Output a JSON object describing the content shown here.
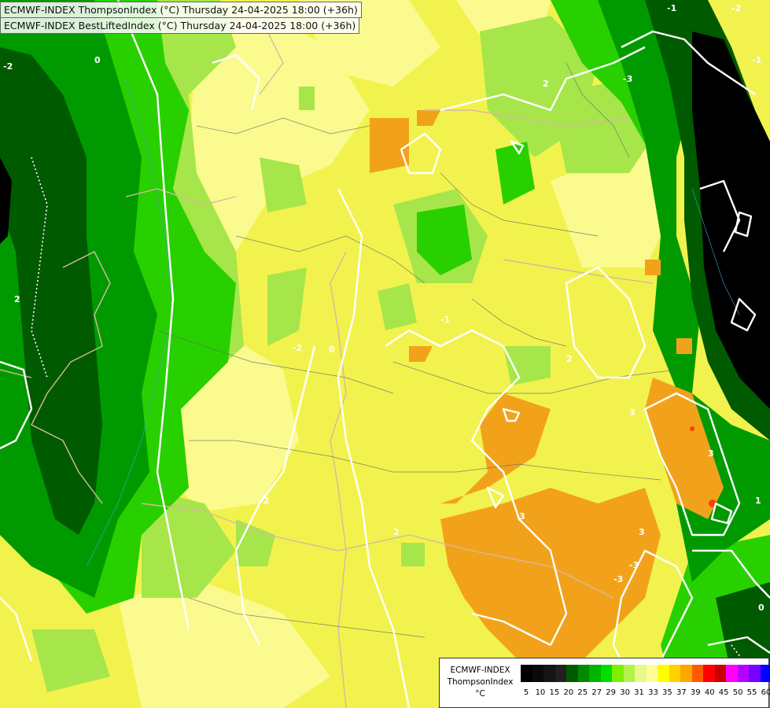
{
  "header": {
    "line1": "ECMWF-INDEX ThompsonIndex (°C) Thursday 24-04-2025 18:00 (+36h)",
    "line2": "ECMWF-INDEX BestLiftedIndex (°C) Thursday 24-04-2025 18:00 (+36h)"
  },
  "legend": {
    "model": "ECMWF-INDEX",
    "parameter": "ThompsonIndex",
    "unit": "°C",
    "swatches": [
      "#000000",
      "#0a0a0a",
      "#151515",
      "#202020",
      "#005a00",
      "#008a00",
      "#00b400",
      "#00e000",
      "#7df000",
      "#b4f24a",
      "#e8f88a",
      "#ffff9a",
      "#ffff00",
      "#ffd200",
      "#ffa500",
      "#ff5a00",
      "#ff0000",
      "#c80000",
      "#ff00ff",
      "#b400ff",
      "#7800ff",
      "#0000ff"
    ],
    "ticks": [
      "5",
      "10",
      "15",
      "20",
      "25",
      "27",
      "29",
      "30",
      "31",
      "33",
      "35",
      "37",
      "39",
      "40",
      "45",
      "50",
      "55",
      "60"
    ]
  },
  "contour_labels": [
    "0",
    "-2",
    "2",
    "-3",
    "-1",
    "2",
    "3",
    "-2",
    "0",
    "-1",
    "-1",
    "-2",
    "2",
    "3",
    "3",
    "-3",
    "3",
    "-3",
    "0",
    "1",
    "2",
    "-2"
  ]
}
